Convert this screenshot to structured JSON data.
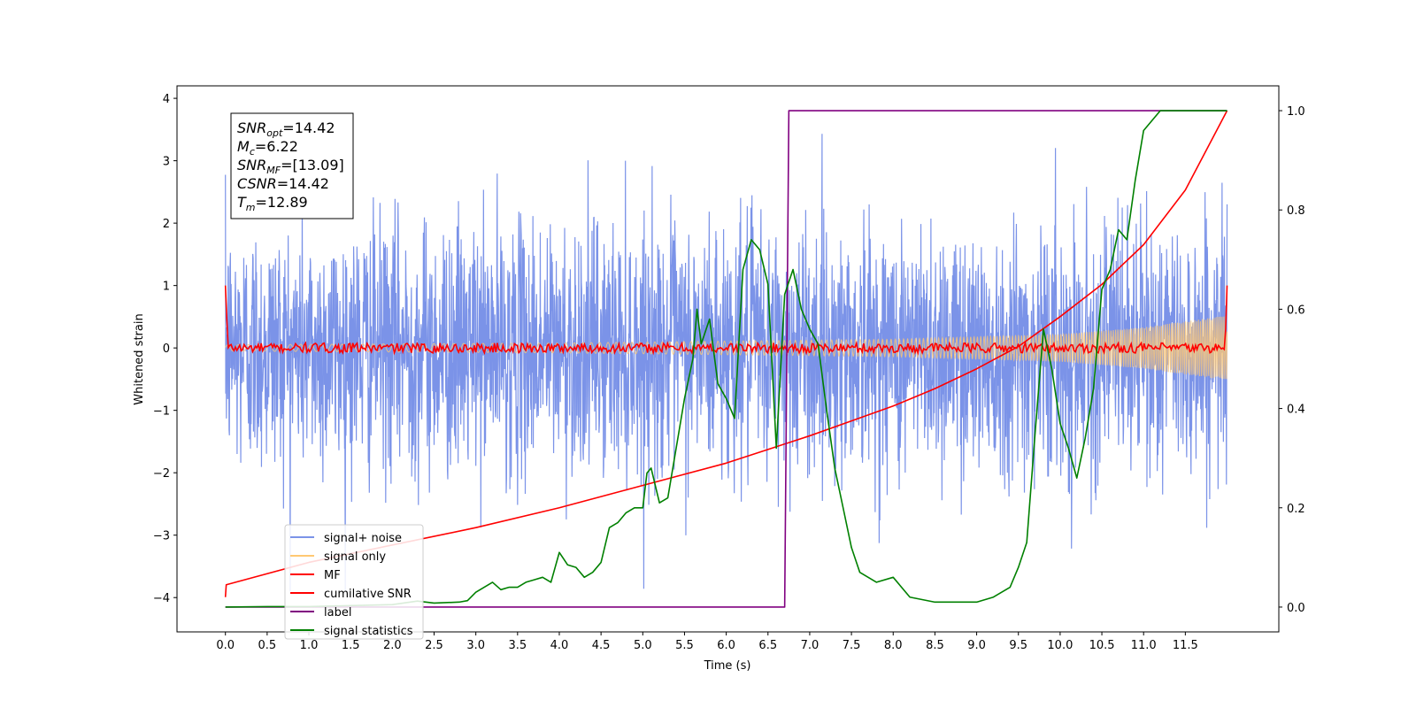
{
  "chart_data": {
    "type": "line",
    "title": "",
    "xlabel": "Time (s)",
    "ylabel": "Whitened strain",
    "y2label": "",
    "xlim": [
      -0.58,
      12.62
    ],
    "ylim": [
      -4.55,
      4.2
    ],
    "y2lim": [
      -0.05,
      1.05
    ],
    "x_ticks": [
      0.0,
      0.5,
      1.0,
      1.5,
      2.0,
      2.5,
      3.0,
      3.5,
      4.0,
      4.5,
      5.0,
      5.5,
      6.0,
      6.5,
      7.0,
      7.5,
      8.0,
      8.5,
      9.0,
      9.5,
      10.0,
      10.5,
      11.0,
      11.5
    ],
    "x_tick_labels": [
      "0.0",
      "0.5",
      "1.0",
      "1.5",
      "2.0",
      "2.5",
      "3.0",
      "3.5",
      "4.0",
      "4.5",
      "5.0",
      "5.5",
      "6.0",
      "6.5",
      "7.0",
      "7.5",
      "8.0",
      "8.5",
      "9.0",
      "9.5",
      "10.0",
      "10.5",
      "11.0",
      "11.5"
    ],
    "y_ticks": [
      4,
      3,
      2,
      1,
      0,
      -1,
      -2,
      -3,
      -4
    ],
    "y_tick_labels": [
      "4",
      "3",
      "2",
      "1",
      "0",
      "−1",
      "−2",
      "−3",
      "−4"
    ],
    "y2_ticks": [
      1.0,
      0.8,
      0.6,
      0.4,
      0.2,
      0.0
    ],
    "y2_tick_labels": [
      "1.0",
      "0.8",
      "0.6",
      "0.4",
      "0.2",
      "0.0"
    ],
    "legend_position": "bottom-left",
    "annotation": {
      "lines": [
        {
          "name": "SNR",
          "sub": "opt",
          "value": "=14.42"
        },
        {
          "name": "M",
          "sub": "c",
          "value": "=6.22"
        },
        {
          "name": "SNR",
          "sub": "MF",
          "value": "=[13.09]"
        },
        {
          "name": "CSNR",
          "sub": "",
          "value": "=14.42"
        },
        {
          "name": "T",
          "sub": "m",
          "value": "=12.89"
        }
      ]
    },
    "series": [
      {
        "name": "signal+ noise",
        "color": "#7b93e8",
        "axis": "left",
        "x_range": [
          0.0,
          12.0
        ],
        "mean": 0.0,
        "std": 1.0,
        "peak_max": 3.8,
        "peak_min": -3.9
      },
      {
        "name": "signal only",
        "color": "#ffc873",
        "axis": "left",
        "x": [
          0.0,
          4.0,
          8.0,
          10.0,
          11.0,
          12.0
        ],
        "amplitude": [
          0.05,
          0.08,
          0.14,
          0.22,
          0.33,
          0.52
        ]
      },
      {
        "name": "MF",
        "color": "#ff0000",
        "axis": "left",
        "x_range": [
          0.0,
          12.0
        ],
        "start_value": 1.0,
        "end_value": 1.0,
        "baseline": 0.0,
        "noise_amplitude": 0.08
      },
      {
        "name": "cumilative SNR",
        "color": "#ff0000",
        "axis": "right",
        "x": [
          0.0,
          0.01,
          1.0,
          2.0,
          3.0,
          4.0,
          5.0,
          6.0,
          7.0,
          7.5,
          8.0,
          8.5,
          9.0,
          9.5,
          10.0,
          10.5,
          11.0,
          11.5,
          12.0
        ],
        "y": [
          0.02,
          0.045,
          0.09,
          0.125,
          0.16,
          0.2,
          0.245,
          0.29,
          0.345,
          0.375,
          0.405,
          0.44,
          0.48,
          0.525,
          0.585,
          0.65,
          0.73,
          0.84,
          1.0
        ]
      },
      {
        "name": "label",
        "color": "#800080",
        "axis": "right",
        "x": [
          0.0,
          6.7,
          6.75,
          12.0
        ],
        "y": [
          0.0,
          0.0,
          1.0,
          1.0
        ]
      },
      {
        "name": "signal statistics",
        "color": "#008000",
        "axis": "right",
        "x": [
          0.0,
          0.5,
          1.0,
          1.5,
          2.0,
          2.3,
          2.5,
          2.8,
          2.9,
          3.0,
          3.1,
          3.2,
          3.3,
          3.4,
          3.5,
          3.6,
          3.7,
          3.8,
          3.9,
          4.0,
          4.1,
          4.2,
          4.3,
          4.4,
          4.5,
          4.6,
          4.7,
          4.8,
          4.9,
          5.0,
          5.05,
          5.1,
          5.2,
          5.3,
          5.4,
          5.5,
          5.6,
          5.65,
          5.7,
          5.8,
          5.9,
          6.0,
          6.1,
          6.2,
          6.3,
          6.4,
          6.5,
          6.6,
          6.7,
          6.8,
          6.9,
          7.0,
          7.1,
          7.2,
          7.3,
          7.4,
          7.5,
          7.6,
          7.8,
          8.0,
          8.2,
          8.5,
          9.0,
          9.2,
          9.4,
          9.5,
          9.6,
          9.7,
          9.8,
          9.9,
          10.0,
          10.1,
          10.2,
          10.3,
          10.4,
          10.5,
          10.6,
          10.7,
          10.8,
          10.9,
          11.0,
          11.2,
          11.3,
          11.5,
          12.0
        ],
        "y": [
          0.0,
          0.001,
          0.001,
          0.003,
          0.005,
          0.012,
          0.008,
          0.01,
          0.013,
          0.03,
          0.04,
          0.05,
          0.035,
          0.04,
          0.04,
          0.05,
          0.055,
          0.06,
          0.05,
          0.11,
          0.085,
          0.08,
          0.06,
          0.07,
          0.09,
          0.16,
          0.17,
          0.19,
          0.2,
          0.2,
          0.27,
          0.28,
          0.21,
          0.22,
          0.32,
          0.42,
          0.5,
          0.6,
          0.53,
          0.58,
          0.45,
          0.42,
          0.38,
          0.68,
          0.74,
          0.72,
          0.65,
          0.32,
          0.63,
          0.68,
          0.6,
          0.56,
          0.53,
          0.4,
          0.28,
          0.2,
          0.12,
          0.07,
          0.05,
          0.06,
          0.02,
          0.01,
          0.01,
          0.02,
          0.04,
          0.08,
          0.13,
          0.35,
          0.56,
          0.48,
          0.37,
          0.32,
          0.26,
          0.34,
          0.44,
          0.64,
          0.68,
          0.76,
          0.74,
          0.86,
          0.96,
          1.0,
          1.0,
          1.0,
          1.0
        ]
      }
    ]
  }
}
